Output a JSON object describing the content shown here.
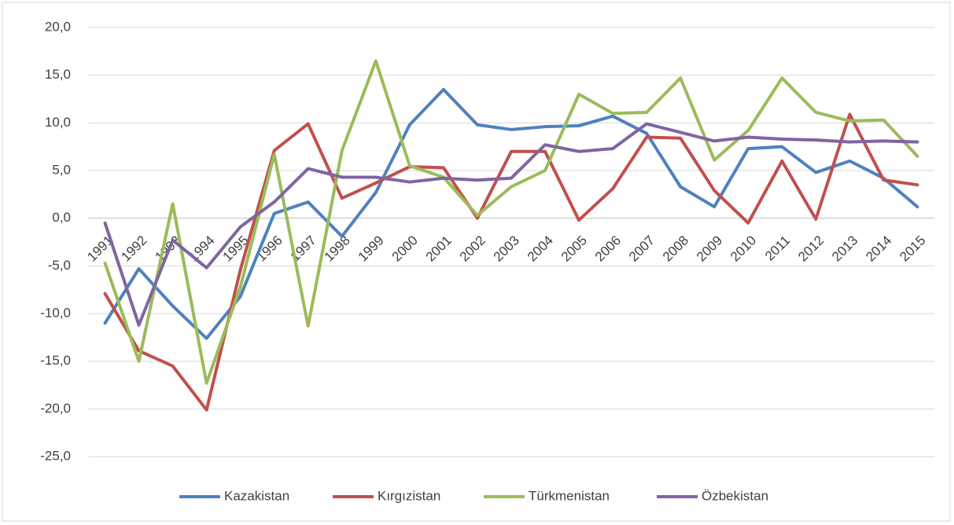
{
  "chart_data": {
    "type": "line",
    "categories": [
      "1991",
      "1992",
      "1993",
      "1994",
      "1995",
      "1996",
      "1997",
      "1998",
      "1999",
      "2000",
      "2001",
      "2002",
      "2003",
      "2004",
      "2005",
      "2006",
      "2007",
      "2008",
      "2009",
      "2010",
      "2011",
      "2012",
      "2013",
      "2014",
      "2015"
    ],
    "series": [
      {
        "name": "Kazakistan",
        "color": "#4f81bd",
        "values": [
          -11.0,
          -5.3,
          -9.2,
          -12.6,
          -8.2,
          0.5,
          1.7,
          -1.9,
          2.7,
          9.8,
          13.5,
          9.8,
          9.3,
          9.6,
          9.7,
          10.7,
          8.9,
          3.3,
          1.2,
          7.3,
          7.5,
          4.8,
          6.0,
          4.2,
          1.2
        ]
      },
      {
        "name": "Kırgızistan",
        "color": "#c0504d",
        "values": [
          -7.9,
          -13.9,
          -15.5,
          -20.1,
          -5.4,
          7.1,
          9.9,
          2.1,
          3.7,
          5.4,
          5.3,
          0.0,
          7.0,
          7.0,
          -0.2,
          3.1,
          8.5,
          8.4,
          2.9,
          -0.5,
          6.0,
          -0.1,
          10.9,
          4.0,
          3.5
        ]
      },
      {
        "name": "Türkmenistan",
        "color": "#9bbb59",
        "values": [
          -4.7,
          -15.0,
          1.5,
          -17.3,
          -7.2,
          6.7,
          -11.3,
          7.1,
          16.5,
          5.5,
          4.3,
          0.3,
          3.3,
          5.0,
          13.0,
          11.0,
          11.1,
          14.7,
          6.1,
          9.2,
          14.7,
          11.1,
          10.2,
          10.3,
          6.5
        ]
      },
      {
        "name": "Özbekistan",
        "color": "#8064a2",
        "values": [
          -0.5,
          -11.2,
          -2.3,
          -5.2,
          -0.9,
          1.7,
          5.2,
          4.3,
          4.3,
          3.8,
          4.2,
          4.0,
          4.2,
          7.7,
          7.0,
          7.3,
          9.9,
          9.0,
          8.1,
          8.5,
          8.3,
          8.2,
          8.0,
          8.1,
          8.0
        ]
      }
    ],
    "ylim": [
      -25,
      20
    ],
    "yticks": [
      {
        "value": -25,
        "label": "-25,0"
      },
      {
        "value": -20,
        "label": "-20,0"
      },
      {
        "value": -15,
        "label": "-15,0"
      },
      {
        "value": -10,
        "label": "-10,0"
      },
      {
        "value": -5,
        "label": "-5,0"
      },
      {
        "value": 0,
        "label": "0,0"
      },
      {
        "value": 5,
        "label": "5,0"
      },
      {
        "value": 10,
        "label": "10,0"
      },
      {
        "value": 15,
        "label": "15,0"
      },
      {
        "value": 20,
        "label": "20,0"
      }
    ],
    "grid": true,
    "legend": "bottom"
  }
}
